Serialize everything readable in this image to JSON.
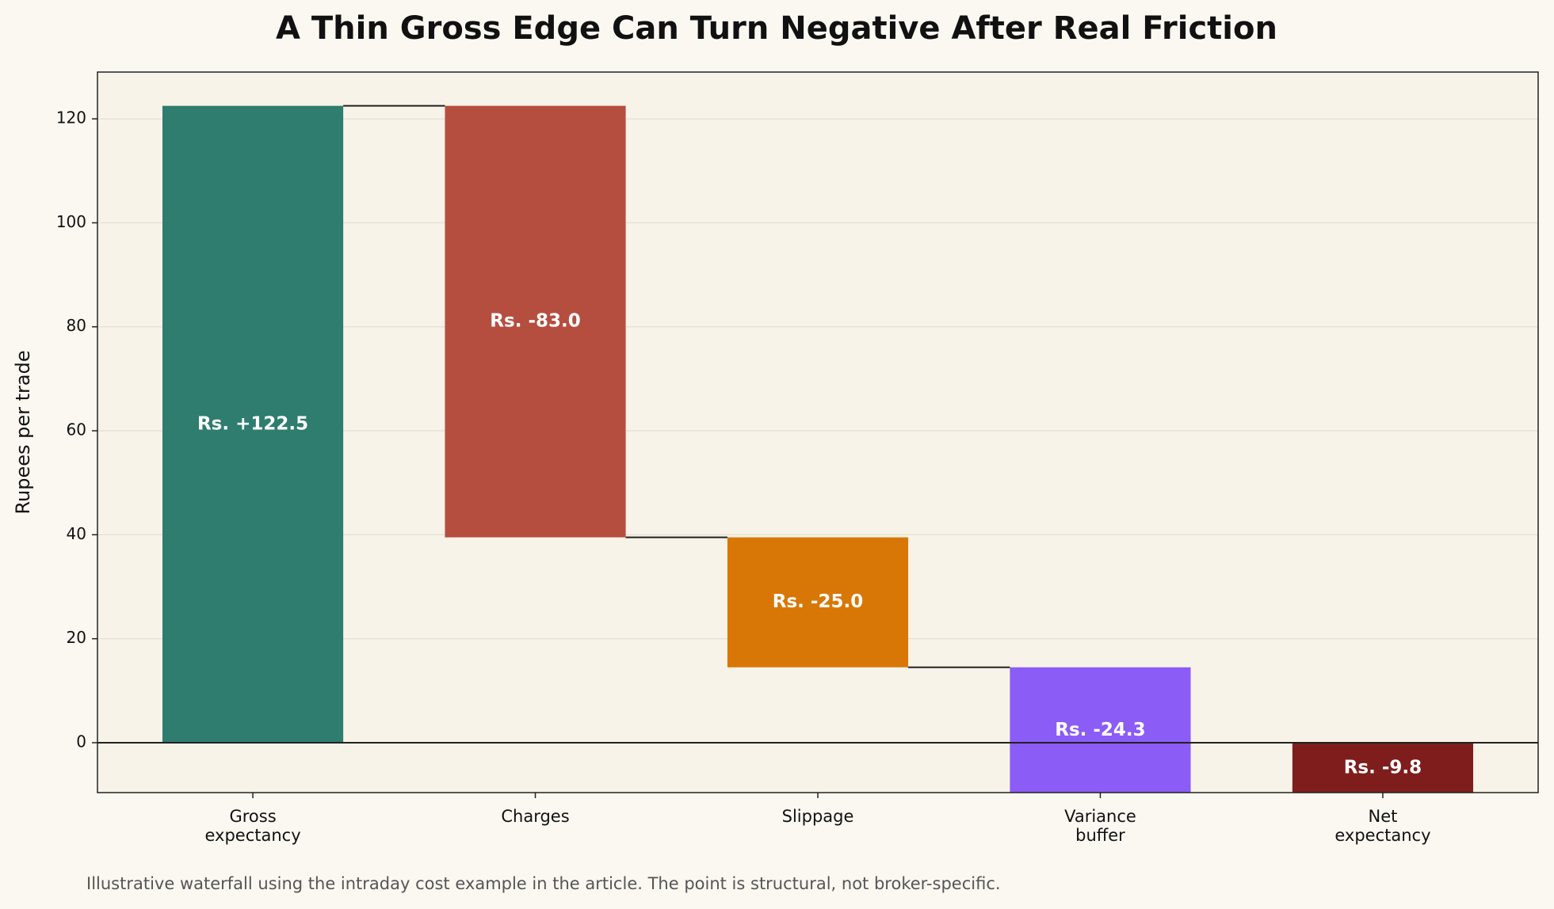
{
  "chart_data": {
    "type": "waterfall",
    "title": "A Thin Gross Edge Can Turn Negative After Real Friction",
    "y_label": "Rupees per trade",
    "note": "Illustrative waterfall using the intraday cost example in the article. The point is structural, not broker-specific.",
    "categories": [
      "Gross\nexpectancy",
      "Charges",
      "Slippage",
      "Variance\nbuffer",
      "Net\nexpectancy"
    ],
    "values": [
      122.5,
      -83.0,
      -25.0,
      -24.3,
      -9.8
    ],
    "value_labels": [
      "Rs. +122.5",
      "Rs. -83.0",
      "Rs. -25.0",
      "Rs. -24.3",
      "Rs. -9.8"
    ],
    "colors": [
      "#2e7d6f",
      "#b54e3f",
      "#d97706",
      "#8b5cf6",
      "#7f1d1d"
    ],
    "total_last": true,
    "ylim": [
      -9.6,
      129
    ],
    "yticks": [
      0,
      20,
      40,
      60,
      80,
      100,
      120
    ],
    "grid": true
  }
}
